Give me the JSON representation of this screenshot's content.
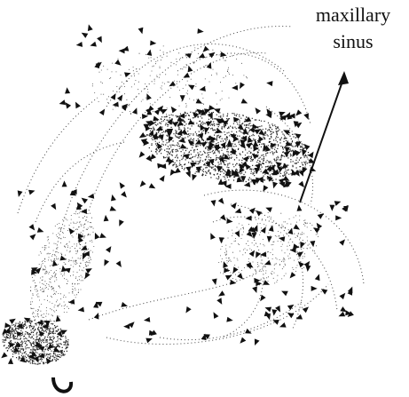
{
  "annotation": {
    "lines": [
      "maxillary",
      "sinus"
    ]
  }
}
